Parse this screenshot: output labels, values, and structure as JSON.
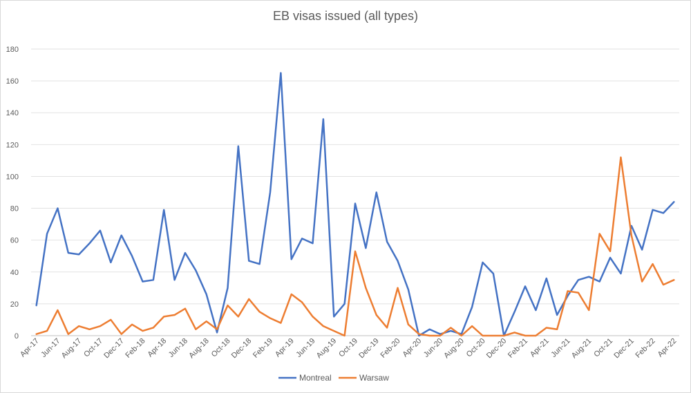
{
  "chart_data": {
    "type": "line",
    "title": "EB visas issued (all types)",
    "xlabel": "",
    "ylabel": "",
    "ylim": [
      0,
      180
    ],
    "yticks": [
      0,
      20,
      40,
      60,
      80,
      100,
      120,
      140,
      160,
      180
    ],
    "grid": true,
    "legend_position": "bottom",
    "x": [
      "Apr-17",
      "May-17",
      "Jun-17",
      "Jul-17",
      "Aug-17",
      "Sep-17",
      "Oct-17",
      "Nov-17",
      "Dec-17",
      "Jan-18",
      "Feb-18",
      "Mar-18",
      "Apr-18",
      "May-18",
      "Jun-18",
      "Jul-18",
      "Aug-18",
      "Sep-18",
      "Oct-18",
      "Nov-18",
      "Dec-18",
      "Jan-19",
      "Feb-19",
      "Mar-19",
      "Apr-19",
      "May-19",
      "Jun-19",
      "Jul-19",
      "Aug-19",
      "Sep-19",
      "Oct-19",
      "Nov-19",
      "Dec-19",
      "Jan-20",
      "Feb-20",
      "Mar-20",
      "Apr-20",
      "May-20",
      "Jun-20",
      "Jul-20",
      "Aug-20",
      "Sep-20",
      "Oct-20",
      "Nov-20",
      "Dec-20",
      "Jan-21",
      "Feb-21",
      "Mar-21",
      "Apr-21",
      "May-21",
      "Jun-21",
      "Jul-21",
      "Aug-21",
      "Sep-21",
      "Oct-21",
      "Nov-21",
      "Dec-21",
      "Jan-22",
      "Feb-22",
      "Mar-22",
      "Apr-22"
    ],
    "x_tick_labels": [
      "Apr-17",
      "Jun-17",
      "Aug-17",
      "Oct-17",
      "Dec-17",
      "Feb-18",
      "Apr-18",
      "Jun-18",
      "Aug-18",
      "Oct-18",
      "Dec-18",
      "Feb-19",
      "Apr-19",
      "Jun-19",
      "Aug-19",
      "Oct-19",
      "Dec-19",
      "Feb-20",
      "Apr-20",
      "Jun-20",
      "Aug-20",
      "Oct-20",
      "Dec-20",
      "Feb-21",
      "Apr-21",
      "Jun-21",
      "Aug-21",
      "Oct-21",
      "Dec-21",
      "Feb-22",
      "Apr-22"
    ],
    "series": [
      {
        "name": "Montreal",
        "color": "#4472c4",
        "values": [
          19,
          64,
          80,
          52,
          51,
          58,
          66,
          46,
          63,
          50,
          34,
          35,
          79,
          35,
          52,
          41,
          26,
          2,
          30,
          119,
          47,
          45,
          90,
          165,
          48,
          61,
          58,
          136,
          12,
          20,
          83,
          55,
          90,
          59,
          47,
          29,
          0,
          4,
          1,
          3,
          1,
          18,
          46,
          39,
          0,
          15,
          31,
          16,
          36,
          13,
          25,
          35,
          37,
          34,
          49,
          39,
          69,
          54,
          79,
          77,
          84
        ]
      },
      {
        "name": "Warsaw",
        "color": "#ed7d31",
        "values": [
          1,
          3,
          16,
          1,
          6,
          4,
          6,
          10,
          1,
          7,
          3,
          5,
          12,
          13,
          17,
          4,
          9,
          4,
          19,
          12,
          23,
          15,
          11,
          8,
          26,
          21,
          12,
          6,
          3,
          0,
          53,
          30,
          13,
          5,
          30,
          7,
          1,
          0,
          0,
          5,
          0,
          6,
          0,
          0,
          0,
          2,
          0,
          0,
          5,
          4,
          28,
          27,
          16,
          64,
          53,
          112,
          63,
          34,
          45,
          32,
          35
        ]
      }
    ]
  }
}
